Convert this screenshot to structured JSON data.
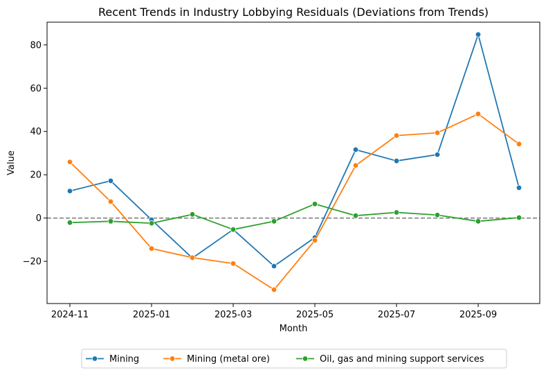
{
  "chart_data": {
    "type": "line",
    "title": "Recent Trends in Industry Lobbying Residuals (Deviations from Trends)",
    "xlabel": "Month",
    "ylabel": "Value",
    "x": [
      "2024-11",
      "2024-12",
      "2025-01",
      "2025-02",
      "2025-03",
      "2025-04",
      "2025-05",
      "2025-06",
      "2025-07",
      "2025-08",
      "2025-09",
      "2025-10"
    ],
    "x_ticks": [
      "2024-11",
      "2025-01",
      "2025-03",
      "2025-05",
      "2025-07",
      "2025-09"
    ],
    "y_ticks": [
      -20,
      0,
      20,
      40,
      60,
      80
    ],
    "ylim": [
      -39.5,
      90.5
    ],
    "reference_line": {
      "y": 0,
      "style": "dashed",
      "color": "#808080"
    },
    "grid": false,
    "legend_position": "bottom-center",
    "series": [
      {
        "name": "Mining",
        "color": "#1f77b4",
        "values": [
          12.5,
          17.2,
          -0.8,
          -18.5,
          -5.3,
          -22.2,
          -9.0,
          31.6,
          26.4,
          29.3,
          84.8,
          14.0
        ]
      },
      {
        "name": "Mining (metal ore)",
        "color": "#ff7f0e",
        "values": [
          25.9,
          7.6,
          -14.1,
          -18.3,
          -21.0,
          -33.1,
          -10.3,
          24.3,
          38.1,
          39.4,
          48.1,
          34.2
        ]
      },
      {
        "name": "Oil, gas and mining support services",
        "color": "#2ca02c",
        "values": [
          -2.1,
          -1.5,
          -2.4,
          1.7,
          -5.3,
          -1.5,
          6.5,
          1.1,
          2.6,
          1.4,
          -1.5,
          0.2
        ]
      }
    ]
  }
}
